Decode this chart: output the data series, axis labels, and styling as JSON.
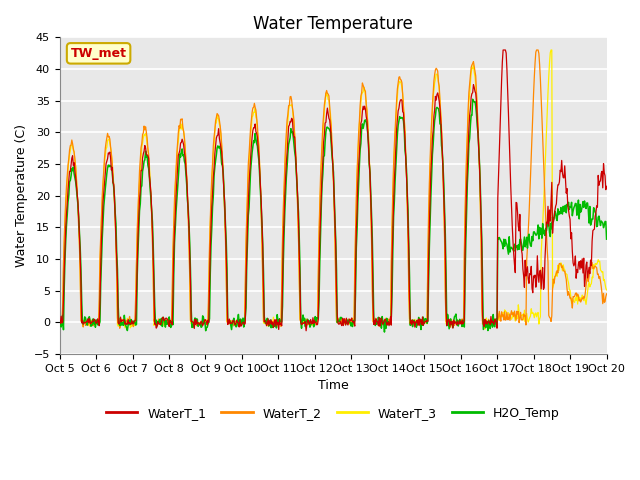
{
  "title": "Water Temperature",
  "ylabel": "Water Temperature (C)",
  "xlabel": "Time",
  "ylim": [
    -5,
    45
  ],
  "xlim": [
    0,
    15
  ],
  "annotation_text": "TW_met",
  "annotation_color": "#cc0000",
  "annotation_bg": "#ffffcc",
  "annotation_border": "#ccaa00",
  "grid_color": "white",
  "bg_color": "#e8e8e8",
  "line_colors": {
    "WaterT_1": "#cc0000",
    "WaterT_2": "#ff8800",
    "WaterT_3": "#ffee00",
    "H2O_Temp": "#00bb00"
  },
  "x_tick_labels": [
    "Oct 5",
    "Oct 6",
    "Oct 7",
    "Oct 8",
    "Oct 9",
    "Oct 10",
    "Oct 11",
    "Oct 12",
    "Oct 13",
    "Oct 14",
    "Oct 15",
    "Oct 16",
    "Oct 17",
    "Oct 18",
    "Oct 19",
    "Oct 20"
  ],
  "title_fontsize": 12,
  "label_fontsize": 9,
  "tick_fontsize": 8
}
